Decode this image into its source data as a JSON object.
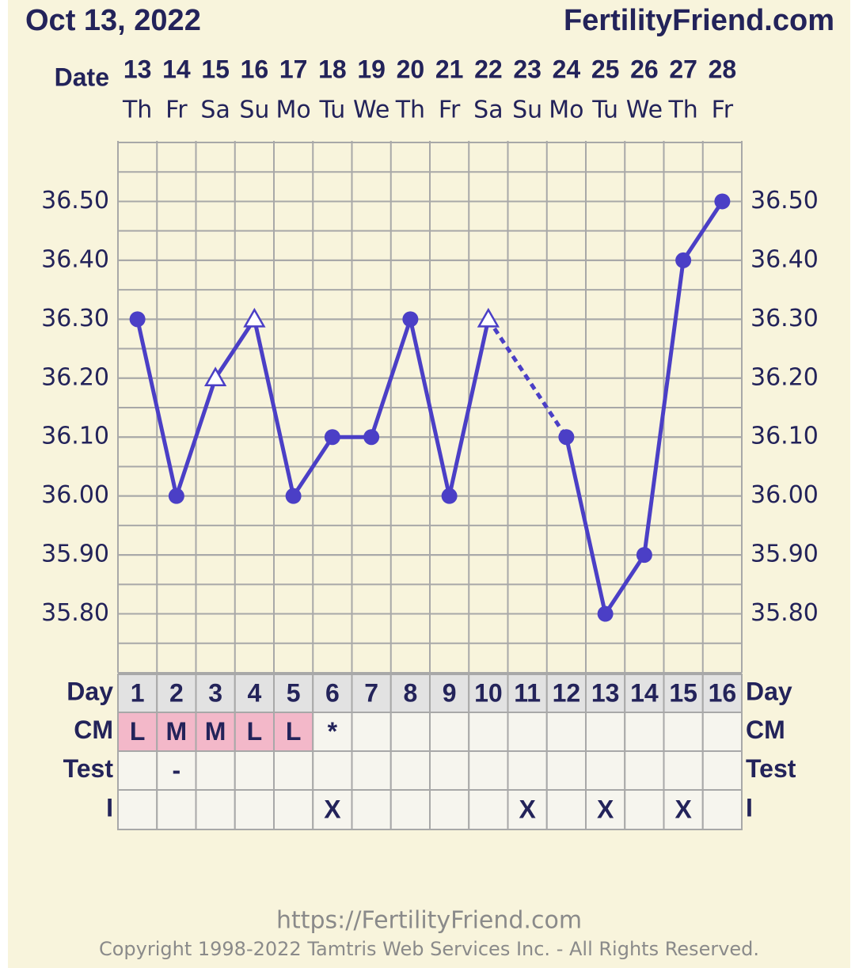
{
  "header": {
    "date": "Oct 13, 2022",
    "site": "FertilityFriend.com"
  },
  "chart_data": {
    "type": "line",
    "x_label": "Date",
    "categories": [
      "13",
      "14",
      "15",
      "16",
      "17",
      "18",
      "19",
      "20",
      "21",
      "22",
      "23",
      "24",
      "25",
      "26",
      "27",
      "28"
    ],
    "weekdays": [
      "Th",
      "Fr",
      "Sa",
      "Su",
      "Mo",
      "Tu",
      "We",
      "Th",
      "Fr",
      "Sa",
      "Su",
      "Mo",
      "Tu",
      "We",
      "Th",
      "Fr"
    ],
    "values": [
      36.3,
      36.0,
      36.2,
      36.3,
      36.0,
      36.1,
      36.1,
      36.3,
      36.0,
      36.3,
      null,
      36.1,
      35.8,
      35.9,
      36.4,
      36.5
    ],
    "markers": [
      "circle",
      "circle",
      "triangle",
      "triangle",
      "circle",
      "circle",
      "circle",
      "circle",
      "circle",
      "triangle",
      null,
      "circle",
      "circle",
      "circle",
      "circle",
      "circle"
    ],
    "color": "#4b3fc6",
    "gap_style": "dashed",
    "ylim": [
      35.7,
      36.6
    ],
    "yticks": [
      {
        "value": 35.8,
        "label": "35.80"
      },
      {
        "value": 35.9,
        "label": "35.90"
      },
      {
        "value": 36.0,
        "label": "36.00"
      },
      {
        "value": 36.1,
        "label": "36.10"
      },
      {
        "value": 36.2,
        "label": "36.20"
      },
      {
        "value": 36.3,
        "label": "36.30"
      },
      {
        "value": 36.4,
        "label": "36.40"
      },
      {
        "value": 36.5,
        "label": "36.50"
      }
    ],
    "grid": true
  },
  "table": {
    "row_labels": [
      "Day",
      "CM",
      "Test",
      "I"
    ],
    "rows": [
      [
        1,
        2,
        3,
        4,
        5,
        6,
        7,
        8,
        9,
        10,
        11,
        12,
        13,
        14,
        15,
        16
      ],
      [
        "L",
        "M",
        "M",
        "L",
        "L",
        "*",
        null,
        null,
        null,
        null,
        null,
        null,
        null,
        null,
        null,
        null
      ],
      [
        null,
        "-",
        null,
        null,
        null,
        null,
        null,
        null,
        null,
        null,
        null,
        null,
        null,
        null,
        null,
        null
      ],
      [
        null,
        null,
        null,
        null,
        null,
        "X",
        null,
        null,
        null,
        null,
        "X",
        null,
        "X",
        null,
        "X",
        null
      ]
    ]
  },
  "footer": {
    "url": "https://FertilityFriend.com",
    "copyright": "Copyright 1998-2022 Tamtris Web Services Inc. - All Rights Reserved."
  }
}
